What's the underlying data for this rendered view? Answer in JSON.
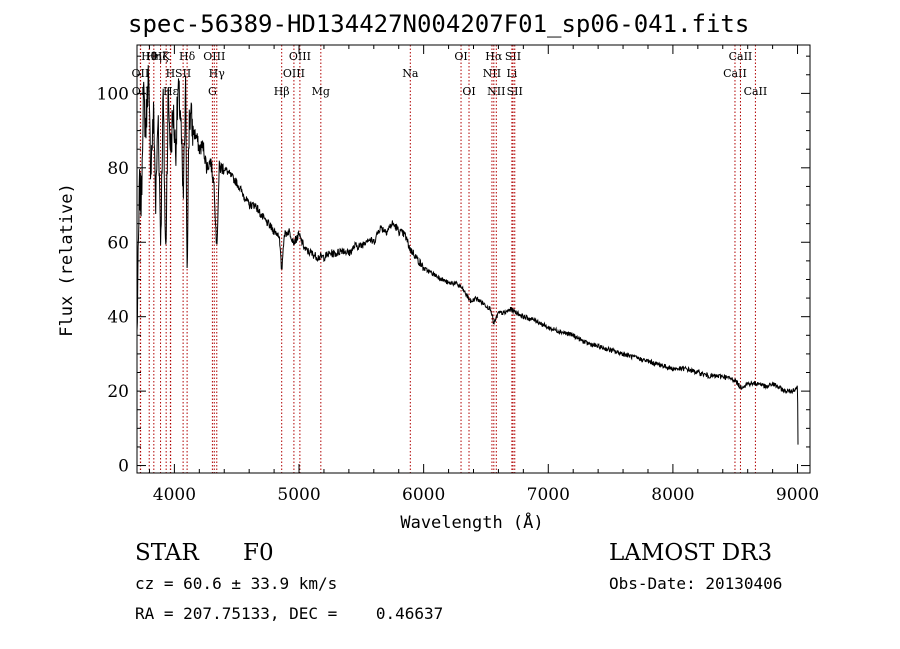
{
  "title": "spec-56389-HD134427N004207F01_sp06-041.fits",
  "chart_data": {
    "type": "line",
    "title": "spec-56389-HD134427N004207F01_sp06-041.fits",
    "xlabel": "Wavelength (Å)",
    "ylabel": "Flux (relative)",
    "xlim": [
      3700,
      9100
    ],
    "ylim": [
      -2,
      113
    ],
    "xticks": [
      4000,
      5000,
      6000,
      7000,
      8000,
      9000
    ],
    "yticks": [
      0,
      20,
      40,
      60,
      80,
      100
    ],
    "series": [
      {
        "name": "flux",
        "x": [
          3700,
          3720,
          3735,
          3750,
          3770,
          3790,
          3810,
          3835,
          3850,
          3870,
          3890,
          3910,
          3930,
          3950,
          3970,
          3990,
          4010,
          4030,
          4050,
          4070,
          4090,
          4102,
          4120,
          4150,
          4180,
          4200,
          4230,
          4260,
          4290,
          4320,
          4340,
          4360,
          4400,
          4450,
          4500,
          4550,
          4600,
          4650,
          4700,
          4750,
          4800,
          4840,
          4861,
          4880,
          4920,
          4960,
          5000,
          5050,
          5100,
          5150,
          5200,
          5250,
          5300,
          5350,
          5400,
          5450,
          5500,
          5550,
          5600,
          5650,
          5700,
          5750,
          5780,
          5800,
          5850,
          5893,
          5920,
          5960,
          6000,
          6050,
          6100,
          6150,
          6200,
          6250,
          6300,
          6340,
          6380,
          6420,
          6460,
          6500,
          6540,
          6563,
          6600,
          6650,
          6700,
          6750,
          6800,
          6900,
          7000,
          7100,
          7200,
          7300,
          7400,
          7500,
          7600,
          7700,
          7800,
          7900,
          8000,
          8100,
          8200,
          8300,
          8400,
          8498,
          8542,
          8600,
          8662,
          8700,
          8750,
          8800,
          8850,
          8900,
          8950,
          9000,
          9005
        ],
        "y": [
          35,
          75,
          70,
          100,
          90,
          105,
          80,
          95,
          70,
          95,
          60,
          100,
          55,
          100,
          85,
          95,
          85,
          100,
          95,
          70,
          100,
          55,
          95,
          90,
          88,
          85,
          86,
          80,
          82,
          75,
          58,
          80,
          80,
          78,
          76,
          73,
          70,
          70,
          67,
          65,
          63,
          62,
          52,
          62,
          63,
          60,
          62,
          58,
          57,
          56,
          56,
          57,
          57,
          58,
          57,
          59,
          59,
          61,
          60,
          64,
          63,
          65,
          64,
          63,
          62,
          58,
          57,
          55,
          53,
          52,
          51,
          50,
          49,
          49,
          48,
          46,
          44,
          45,
          44,
          43,
          42,
          38,
          41,
          41,
          42,
          41,
          40,
          39,
          37,
          36,
          35,
          33,
          32,
          31,
          30,
          29,
          28,
          27,
          26,
          26,
          25,
          24,
          24,
          23,
          21,
          22,
          22,
          22,
          21,
          22,
          21,
          20,
          20,
          21,
          2
        ]
      }
    ],
    "lines": [
      {
        "name": "OII",
        "x": 3727,
        "row": 2
      },
      {
        "name": "OII",
        "x": 3729,
        "row": 3
      },
      {
        "name": "Hθ",
        "x": 3798,
        "row": 1
      },
      {
        "name": "Hη",
        "x": 3835,
        "row": 1
      },
      {
        "name": "Hζ",
        "x": 3889,
        "row": 1
      },
      {
        "name": "K",
        "x": 3934,
        "row": 1
      },
      {
        "name": "H",
        "x": 3968,
        "row": 2
      },
      {
        "name": "Hε",
        "x": 3970,
        "row": 3
      },
      {
        "name": "SII",
        "x": 4070,
        "row": 2
      },
      {
        "name": "Hδ",
        "x": 4102,
        "row": 1
      },
      {
        "name": "G",
        "x": 4305,
        "row": 3
      },
      {
        "name": "OIII",
        "x": 4320,
        "row": 1
      },
      {
        "name": "Hγ",
        "x": 4340,
        "row": 2
      },
      {
        "name": "Hβ",
        "x": 4861,
        "row": 3
      },
      {
        "name": "OIII",
        "x": 4959,
        "row": 2
      },
      {
        "name": "OIII",
        "x": 5007,
        "row": 1
      },
      {
        "name": "Mg",
        "x": 5175,
        "row": 3
      },
      {
        "name": "Na",
        "x": 5893,
        "row": 2
      },
      {
        "name": "OI",
        "x": 6300,
        "row": 1
      },
      {
        "name": "OI",
        "x": 6364,
        "row": 3
      },
      {
        "name": "NII",
        "x": 6548,
        "row": 2
      },
      {
        "name": "Hα",
        "x": 6563,
        "row": 1
      },
      {
        "name": "NII",
        "x": 6583,
        "row": 3
      },
      {
        "name": "Li",
        "x": 6708,
        "row": 2
      },
      {
        "name": "SII",
        "x": 6717,
        "row": 1
      },
      {
        "name": "SII",
        "x": 6731,
        "row": 3
      },
      {
        "name": "CaII",
        "x": 8498,
        "row": 2
      },
      {
        "name": "CaII",
        "x": 8542,
        "row": 1
      },
      {
        "name": "CaII",
        "x": 8662,
        "row": 3
      }
    ]
  },
  "info": {
    "object_class": "STAR",
    "subclass": "F0",
    "survey": "LAMOST DR3",
    "cz": "cz = 60.6 ± 33.9 km/s",
    "obs_date": "Obs-Date: 20130406",
    "radec": "RA = 207.75133, DEC =    0.46637"
  }
}
